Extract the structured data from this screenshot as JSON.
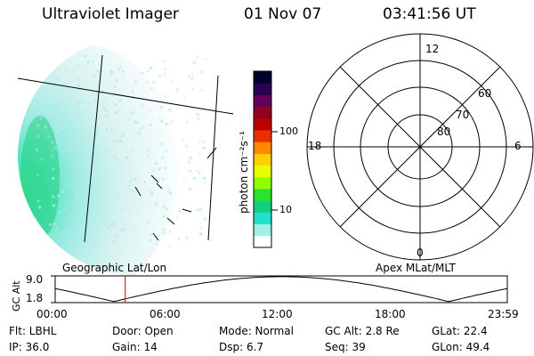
{
  "header": {
    "instrument": "Ultraviolet Imager",
    "date": "01 Nov 07",
    "time": "03:41:56 UT"
  },
  "image_panel": {
    "caption": "Geographic Lat/Lon"
  },
  "colorbar": {
    "unit_label": "photon cm⁻²s⁻¹",
    "ticks": [
      "100",
      "10"
    ],
    "colors": [
      "#000030",
      "#2a0050",
      "#60005a",
      "#900020",
      "#c00000",
      "#e83000",
      "#ff8800",
      "#ffd000",
      "#e8ff00",
      "#90ff00",
      "#30e030",
      "#10d080",
      "#20e0d0",
      "#a0f0e8",
      "#ffffff"
    ]
  },
  "polar_panel": {
    "caption": "Apex MLat/MLT",
    "mlt_labels": {
      "top": "12",
      "left": "18",
      "right": "6",
      "bottom": "0"
    },
    "mlat_labels": [
      "60",
      "70",
      "80"
    ]
  },
  "altitude_plot": {
    "axis_label": "GC Alt",
    "y_ticks": [
      "9.0",
      "1.8"
    ],
    "x_ticks": [
      "00:00",
      "06:00",
      "12:00",
      "18:00",
      "23:59"
    ],
    "current_time_fraction": 0.155
  },
  "info": {
    "flt": "Flt: LBHL",
    "ip": "IP: 36.0",
    "door": "Door: Open",
    "gain": "Gain: 14",
    "mode": "Mode: Normal",
    "dsp": "Dsp:     6.7",
    "gcalt": "GC Alt: 2.8 Re",
    "seq": "Seq: 39",
    "glat": "GLat:  22.4",
    "glon": "GLon:  49.4"
  }
}
